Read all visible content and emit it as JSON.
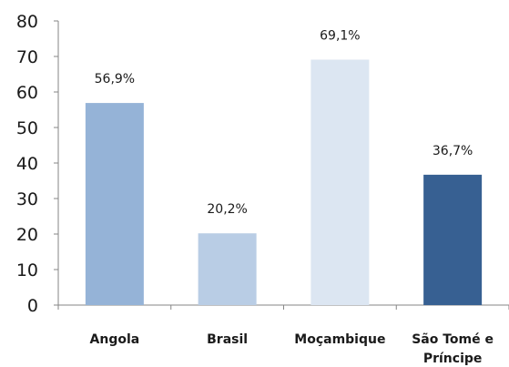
{
  "chart_data": {
    "type": "bar",
    "title": "",
    "categories": [
      "Angola",
      "Brasil",
      "Moçambique",
      "São Tomé e Príncipe"
    ],
    "values": [
      56.9,
      20.2,
      69.1,
      36.7
    ],
    "data_labels": [
      "56,9%",
      "20,2%",
      "69,1%",
      "36,7%"
    ],
    "bar_colors": [
      "#95b3d7",
      "#b9cde5",
      "#dce6f2",
      "#376092"
    ],
    "ylim": [
      0,
      80
    ],
    "yticks": [
      0,
      10,
      20,
      30,
      40,
      50,
      60,
      70,
      80
    ],
    "xlabel": "",
    "ylabel": "",
    "grid": false,
    "legend": "none"
  }
}
